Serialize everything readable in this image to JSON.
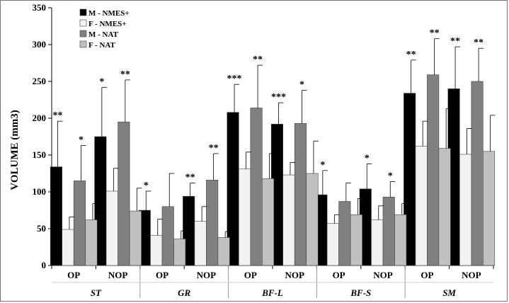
{
  "chart_data": {
    "type": "bar",
    "title": "",
    "ylabel": "VOLUME (mm3)",
    "ylim": [
      0,
      350
    ],
    "yticks": [
      0,
      50,
      100,
      150,
      200,
      250,
      300,
      350
    ],
    "groups": [
      {
        "name": "ST",
        "categories": [
          "OP",
          "NOP"
        ]
      },
      {
        "name": "GR",
        "categories": [
          "OP",
          "NOP"
        ]
      },
      {
        "name": "BF-L",
        "categories": [
          "OP",
          "NOP"
        ]
      },
      {
        "name": "BF-S",
        "categories": [
          "OP",
          "NOP"
        ]
      },
      {
        "name": "SM",
        "categories": [
          "OP",
          "NOP"
        ]
      }
    ],
    "series": [
      {
        "name": "M - NMES+",
        "color": "#000000",
        "values": [
          134,
          175,
          75,
          94,
          208,
          192,
          96,
          104,
          234,
          240
        ],
        "errors": [
          62,
          67,
          26,
          18,
          38,
          29,
          33,
          34,
          45,
          57
        ],
        "annotations": [
          "**",
          "*",
          "*",
          "**",
          "***",
          "***",
          "*",
          "*",
          "**",
          "**"
        ]
      },
      {
        "name": "F - NMES+",
        "color": "#f2f2f2",
        "values": [
          49,
          101,
          41,
          60,
          131,
          123,
          57,
          62,
          162,
          151
        ],
        "errors": [
          17,
          31,
          22,
          20,
          23,
          17,
          12,
          19,
          34,
          35
        ],
        "annotations": [
          "",
          "",
          "",
          "",
          "",
          "",
          "",
          "",
          "",
          ""
        ]
      },
      {
        "name": "M - NAT",
        "color": "#808080",
        "values": [
          115,
          195,
          80,
          116,
          214,
          193,
          87,
          93,
          259,
          250
        ],
        "errors": [
          48,
          57,
          45,
          36,
          58,
          45,
          25,
          21,
          49,
          45
        ],
        "annotations": [
          "*",
          "**",
          "",
          "**",
          "**",
          "*",
          "",
          "*",
          "**",
          "**"
        ]
      },
      {
        "name": "F - NAT",
        "color": "#c0c0c0",
        "values": [
          62,
          74,
          36,
          38,
          118,
          125,
          69,
          69,
          159,
          155
        ],
        "errors": [
          22,
          31,
          11,
          8,
          34,
          44,
          22,
          15,
          54,
          49
        ],
        "annotations": [
          "",
          "",
          "",
          "",
          "",
          "",
          "",
          "",
          "",
          ""
        ]
      }
    ],
    "legend": "top-left",
    "grid": false
  }
}
